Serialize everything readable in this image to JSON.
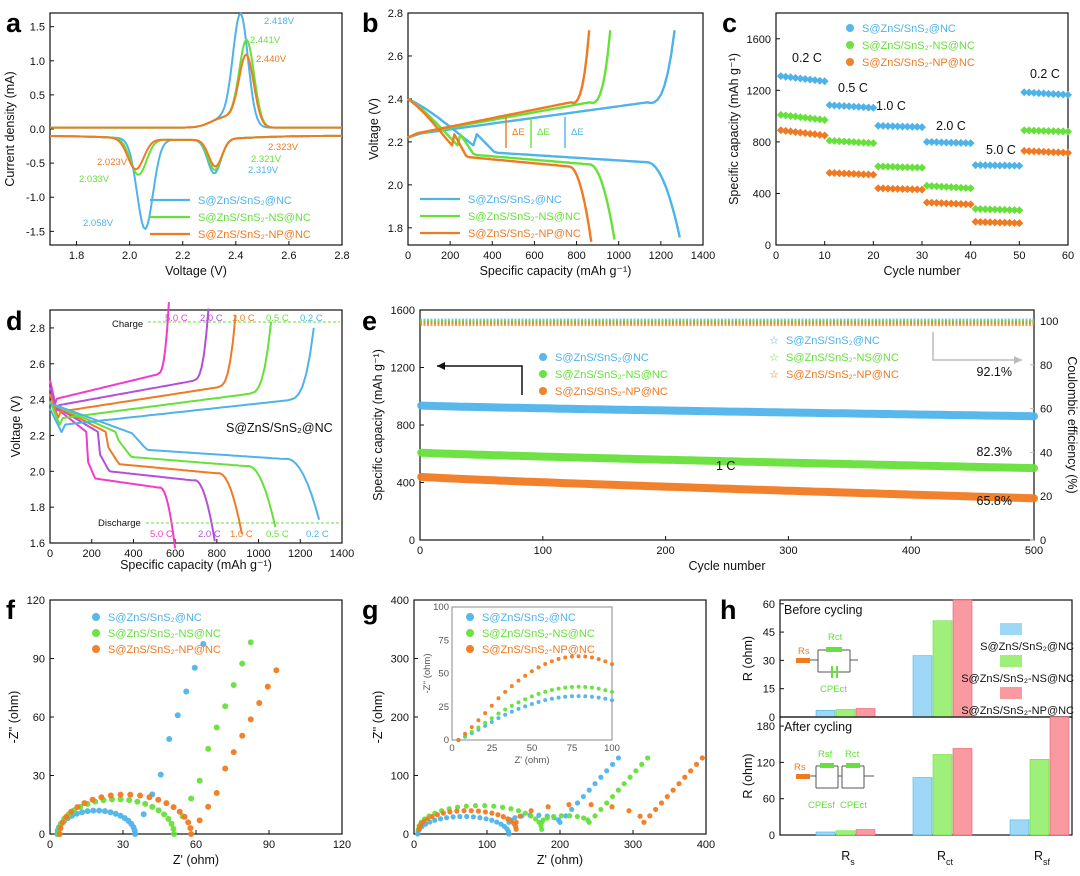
{
  "colors": {
    "blue": "#4fb3ea",
    "green": "#66e03a",
    "orange": "#f07a22",
    "gray": "#c8c8c8"
  },
  "series_names": [
    "S@ZnS/SnS₂@NC",
    "S@ZnS/SnS₂-NS@NC",
    "S@ZnS/SnS₂-NP@NC"
  ],
  "panels": {
    "a": {
      "label": "a",
      "xlabel": "Voltage (V)",
      "ylabel": "Current density (mA)",
      "peaks": [
        {
          "text": "2.418V",
          "color": "#4fb3ea"
        },
        {
          "text": "2.441V",
          "color": "#66e03a"
        },
        {
          "text": "2.440V",
          "color": "#f07a22"
        },
        {
          "text": "2.323V",
          "color": "#f07a22"
        },
        {
          "text": "2.321V",
          "color": "#66e03a"
        },
        {
          "text": "2.319V",
          "color": "#4fb3ea"
        },
        {
          "text": "2.023V",
          "color": "#f07a22"
        },
        {
          "text": "2.033V",
          "color": "#66e03a"
        },
        {
          "text": "2.058V",
          "color": "#4fb3ea"
        }
      ]
    },
    "b": {
      "label": "b",
      "xlabel": "Specific capacity  (mAh g⁻¹)",
      "ylabel": "Voltage (V)",
      "delta_e": "ΔE"
    },
    "c": {
      "label": "c",
      "xlabel": "Cycle number",
      "ylabel": "Specific capacity (mAh g⁻¹)",
      "rates": [
        "0.2 C",
        "0.5 C",
        "1.0 C",
        "2.0 C",
        "5.0 C",
        "0.2 C"
      ]
    },
    "d": {
      "label": "d",
      "xlabel": "Specific capacity  (mAh g⁻¹)",
      "ylabel": "Voltage (V)",
      "inner_title": "S@ZnS/SnS₂@NC",
      "charge": "Charge",
      "discharge": "Discharge",
      "rates": [
        "5.0 C",
        "2.0 C",
        "1.0 C",
        "0.5 C",
        "0.2 C"
      ]
    },
    "e": {
      "label": "e",
      "xlabel": "Cycle number",
      "ylabel": "Specific capacity (mAh g⁻¹)",
      "ylabel_right": "Coulombic efficiency (%)",
      "rate": "1 C",
      "retention": [
        "92.1%",
        "82.3%",
        "65.8%"
      ]
    },
    "f": {
      "label": "f",
      "xlabel": "Z' (ohm)",
      "ylabel": "-Z'' (ohm)"
    },
    "g": {
      "label": "g",
      "xlabel": "Z' (ohm)",
      "ylabel": "-Z'' (ohm)",
      "inset_xlabel": "Z' (ohm)",
      "inset_ylabel": "-Z'' (ohm)"
    },
    "h": {
      "label": "h",
      "ylabel": "R (ohm)",
      "before": "Before cycling",
      "after": "After cycling",
      "categories": [
        "Rs",
        "Rct",
        "Rsf"
      ],
      "circuit_top": [
        "Rs",
        "Rct",
        "CPEct"
      ],
      "circuit_bottom": [
        "Rs",
        "Rsf",
        "Rct",
        "CPEsf",
        "CPEct"
      ]
    }
  },
  "chart_data": [
    {
      "panel": "a",
      "type": "line",
      "title": "",
      "xlabel": "Voltage (V)",
      "ylabel": "Current density (mA)",
      "xlim": [
        1.7,
        2.8
      ],
      "ylim": [
        -1.7,
        1.7
      ],
      "x_ticks": [
        "1.8",
        "2.0",
        "2.2",
        "2.4",
        "2.6",
        "2.8"
      ],
      "y_ticks": [
        "-1.5",
        "-1.0",
        "-0.5",
        "0.0",
        "0.5",
        "1.0",
        "1.5"
      ],
      "series": [
        {
          "name": "S@ZnS/SnS₂@NC",
          "reduction_peaks_V": [
            2.319,
            2.058
          ],
          "reduction_currents_mA": [
            -0.5,
            -1.42
          ],
          "oxidation_peak_V": 2.418,
          "oxidation_current_mA": 1.6
        },
        {
          "name": "S@ZnS/SnS₂-NS@NC",
          "reduction_peaks_V": [
            2.321,
            2.033
          ],
          "reduction_currents_mA": [
            -0.45,
            -0.63
          ],
          "oxidation_peak_V": 2.441,
          "oxidation_current_mA": 1.25
        },
        {
          "name": "S@ZnS/SnS₂-NP@NC",
          "reduction_peaks_V": [
            2.323,
            2.023
          ],
          "reduction_currents_mA": [
            -0.4,
            -0.55
          ],
          "oxidation_peak_V": 2.44,
          "oxidation_current_mA": 1.03
        }
      ]
    },
    {
      "panel": "b",
      "type": "line",
      "xlabel": "Specific capacity (mAh g⁻¹)",
      "ylabel": "Voltage (V)",
      "xlim": [
        0,
        1400
      ],
      "ylim": [
        1.72,
        2.8
      ],
      "x_ticks": [
        "0",
        "200",
        "400",
        "600",
        "800",
        "1000",
        "1200",
        "1400"
      ],
      "y_ticks": [
        "1.8",
        "2.0",
        "2.2",
        "2.4",
        "2.6",
        "2.8"
      ],
      "series": [
        {
          "name": "S@ZnS/SnS₂@NC",
          "discharge_capacity": 1290,
          "charge_capacity": 1265,
          "plateau_V": 2.15
        },
        {
          "name": "S@ZnS/SnS₂-NS@NC",
          "discharge_capacity": 980,
          "charge_capacity": 960,
          "plateau_V": 2.14
        },
        {
          "name": "S@ZnS/SnS₂-NP@NC",
          "discharge_capacity": 870,
          "charge_capacity": 860,
          "plateau_V": 2.13
        }
      ]
    },
    {
      "panel": "c",
      "type": "scatter",
      "xlabel": "Cycle number",
      "ylabel": "Specific capacity (mAh g⁻¹)",
      "xlim": [
        0,
        60
      ],
      "ylim": [
        0,
        1800
      ],
      "x_ticks": [
        "0",
        "10",
        "20",
        "30",
        "40",
        "50",
        "60"
      ],
      "y_ticks": [
        "0",
        "400",
        "800",
        "1200",
        "1600"
      ],
      "segments_cycles": [
        [
          1,
          10
        ],
        [
          11,
          20
        ],
        [
          21,
          30
        ],
        [
          31,
          40
        ],
        [
          41,
          50
        ],
        [
          51,
          60
        ]
      ],
      "series": [
        {
          "name": "S@ZnS/SnS₂@NC",
          "start": [
            1310,
            1085,
            925,
            800,
            620,
            1185
          ],
          "end": [
            1270,
            1065,
            915,
            790,
            615,
            1165
          ]
        },
        {
          "name": "S@ZnS/SnS₂-NS@NC",
          "start": [
            1010,
            810,
            610,
            460,
            280,
            890
          ],
          "end": [
            970,
            790,
            600,
            440,
            270,
            880
          ]
        },
        {
          "name": "S@ZnS/SnS₂-NP@NC",
          "start": [
            890,
            560,
            440,
            330,
            180,
            730
          ],
          "end": [
            850,
            545,
            430,
            315,
            170,
            715
          ]
        }
      ]
    },
    {
      "panel": "d",
      "type": "line",
      "xlabel": "Specific capacity (mAh g⁻¹)",
      "ylabel": "Voltage (V)",
      "xlim": [
        0,
        1400
      ],
      "ylim": [
        1.6,
        2.9
      ],
      "x_ticks": [
        "0",
        "200",
        "400",
        "600",
        "800",
        "1000",
        "1200",
        "1400"
      ],
      "y_ticks": [
        "1.6",
        "1.8",
        "2.0",
        "2.2",
        "2.4",
        "2.6",
        "2.8"
      ],
      "series": [
        {
          "name": "5.0 C",
          "discharge_capacity": 600,
          "charge_capacity": 570,
          "color": "#f03cc8"
        },
        {
          "name": "2.0 C",
          "discharge_capacity": 790,
          "charge_capacity": 760,
          "color": "#b44fd8"
        },
        {
          "name": "1.0 C",
          "discharge_capacity": 920,
          "charge_capacity": 890,
          "color": "#f07a22"
        },
        {
          "name": "0.5 C",
          "discharge_capacity": 1080,
          "charge_capacity": 1060,
          "color": "#66e03a"
        },
        {
          "name": "0.2 C",
          "discharge_capacity": 1290,
          "charge_capacity": 1265,
          "color": "#4fb3ea"
        }
      ]
    },
    {
      "panel": "e",
      "type": "scatter",
      "xlabel": "Cycle number",
      "ylabel": "Specific capacity (mAh g⁻¹)",
      "xlim": [
        0,
        500
      ],
      "ylim": [
        0,
        1600
      ],
      "ylim_right": [
        0,
        105
      ],
      "x_ticks": [
        "0",
        "100",
        "200",
        "300",
        "400",
        "500"
      ],
      "y_ticks": [
        "0",
        "400",
        "800",
        "1200",
        "1600"
      ],
      "y_ticks_right": [
        "0",
        "20",
        "40",
        "60",
        "80",
        "100"
      ],
      "series": [
        {
          "name": "S@ZnS/SnS₂@NC",
          "capacity_start": 935,
          "capacity_end": 861,
          "retention": "92.1%",
          "coulombic_efficiency": 100
        },
        {
          "name": "S@ZnS/SnS₂-NS@NC",
          "capacity_start": 608,
          "capacity_end": 500,
          "retention": "82.3%",
          "coulombic_efficiency": 100
        },
        {
          "name": "S@ZnS/SnS₂-NP@NC",
          "capacity_start": 440,
          "capacity_end": 290,
          "retention": "65.8%",
          "coulombic_efficiency": 100
        }
      ]
    },
    {
      "panel": "f",
      "type": "scatter",
      "xlabel": "Z' (ohm)",
      "ylabel": "-Z'' (ohm)",
      "xlim": [
        0,
        120
      ],
      "ylim": [
        0,
        120
      ],
      "x_ticks": [
        "0",
        "30",
        "60",
        "90",
        "120"
      ],
      "y_ticks": [
        "0",
        "30",
        "60",
        "90",
        "120"
      ],
      "series": [
        {
          "name": "S@ZnS/SnS₂@NC",
          "rs": 3,
          "semicircle_end": 35,
          "tail_slope": 2.9,
          "tail_points": 8
        },
        {
          "name": "S@ZnS/SnS₂-NS@NC",
          "rs": 3.5,
          "semicircle_end": 51,
          "tail_slope": 2.6,
          "tail_points": 9
        },
        {
          "name": "S@ZnS/SnS₂-NP@NC",
          "rs": 4,
          "semicircle_end": 58,
          "tail_slope": 2.0,
          "tail_points": 10
        }
      ]
    },
    {
      "panel": "g",
      "type": "scatter",
      "xlabel": "Z' (ohm)",
      "ylabel": "-Z'' (ohm)",
      "xlim": [
        0,
        400
      ],
      "ylim": [
        0,
        400
      ],
      "x_ticks": [
        "0",
        "100",
        "200",
        "300",
        "400"
      ],
      "y_ticks": [
        "0",
        "100",
        "200",
        "300",
        "400"
      ],
      "series": [
        {
          "name": "S@ZnS/SnS₂@NC",
          "rs": 5,
          "rsf_end": 130,
          "rct_end": 200
        },
        {
          "name": "S@ZnS/SnS₂-NS@NC",
          "rs": 6,
          "rsf_end": 175,
          "rct_end": 240
        },
        {
          "name": "S@ZnS/SnS₂-NP@NC",
          "rs": 7,
          "rsf_end": 140,
          "rct_end": 315
        }
      ],
      "inset": {
        "xlim": [
          0,
          100
        ],
        "ylim": [
          0,
          100
        ],
        "x_ticks": [
          "0",
          "25",
          "50",
          "75",
          "100"
        ],
        "y_ticks": [
          "0",
          "25",
          "50",
          "75",
          "100"
        ],
        "peaks": [
          33,
          40,
          63
        ]
      }
    },
    {
      "panel": "h",
      "type": "bar",
      "categories": [
        "Rs",
        "Rct",
        "Rsf"
      ],
      "before": {
        "ylim": [
          0,
          62
        ],
        "y_ticks": [
          "0",
          "15",
          "30",
          "45",
          "60"
        ],
        "series": [
          {
            "name": "S@ZnS/SnS₂@NC",
            "values": [
              3.5,
              32.5,
              null
            ]
          },
          {
            "name": "S@ZnS/SnS₂-NS@NC",
            "values": [
              4,
              51,
              null
            ]
          },
          {
            "name": "S@ZnS/SnS₂-NP@NC",
            "values": [
              4.5,
              62,
              null
            ]
          }
        ]
      },
      "after": {
        "ylim": [
          0,
          195
        ],
        "y_ticks": [
          "0",
          "60",
          "120",
          "180"
        ],
        "series": [
          {
            "name": "S@ZnS/SnS₂@NC",
            "values": [
              5,
              95,
              25
            ]
          },
          {
            "name": "S@ZnS/SnS₂-NS@NC",
            "values": [
              7,
              133,
              125
            ]
          },
          {
            "name": "S@ZnS/SnS₂-NP@NC",
            "values": [
              9,
              143,
              195
            ]
          }
        ]
      }
    }
  ]
}
